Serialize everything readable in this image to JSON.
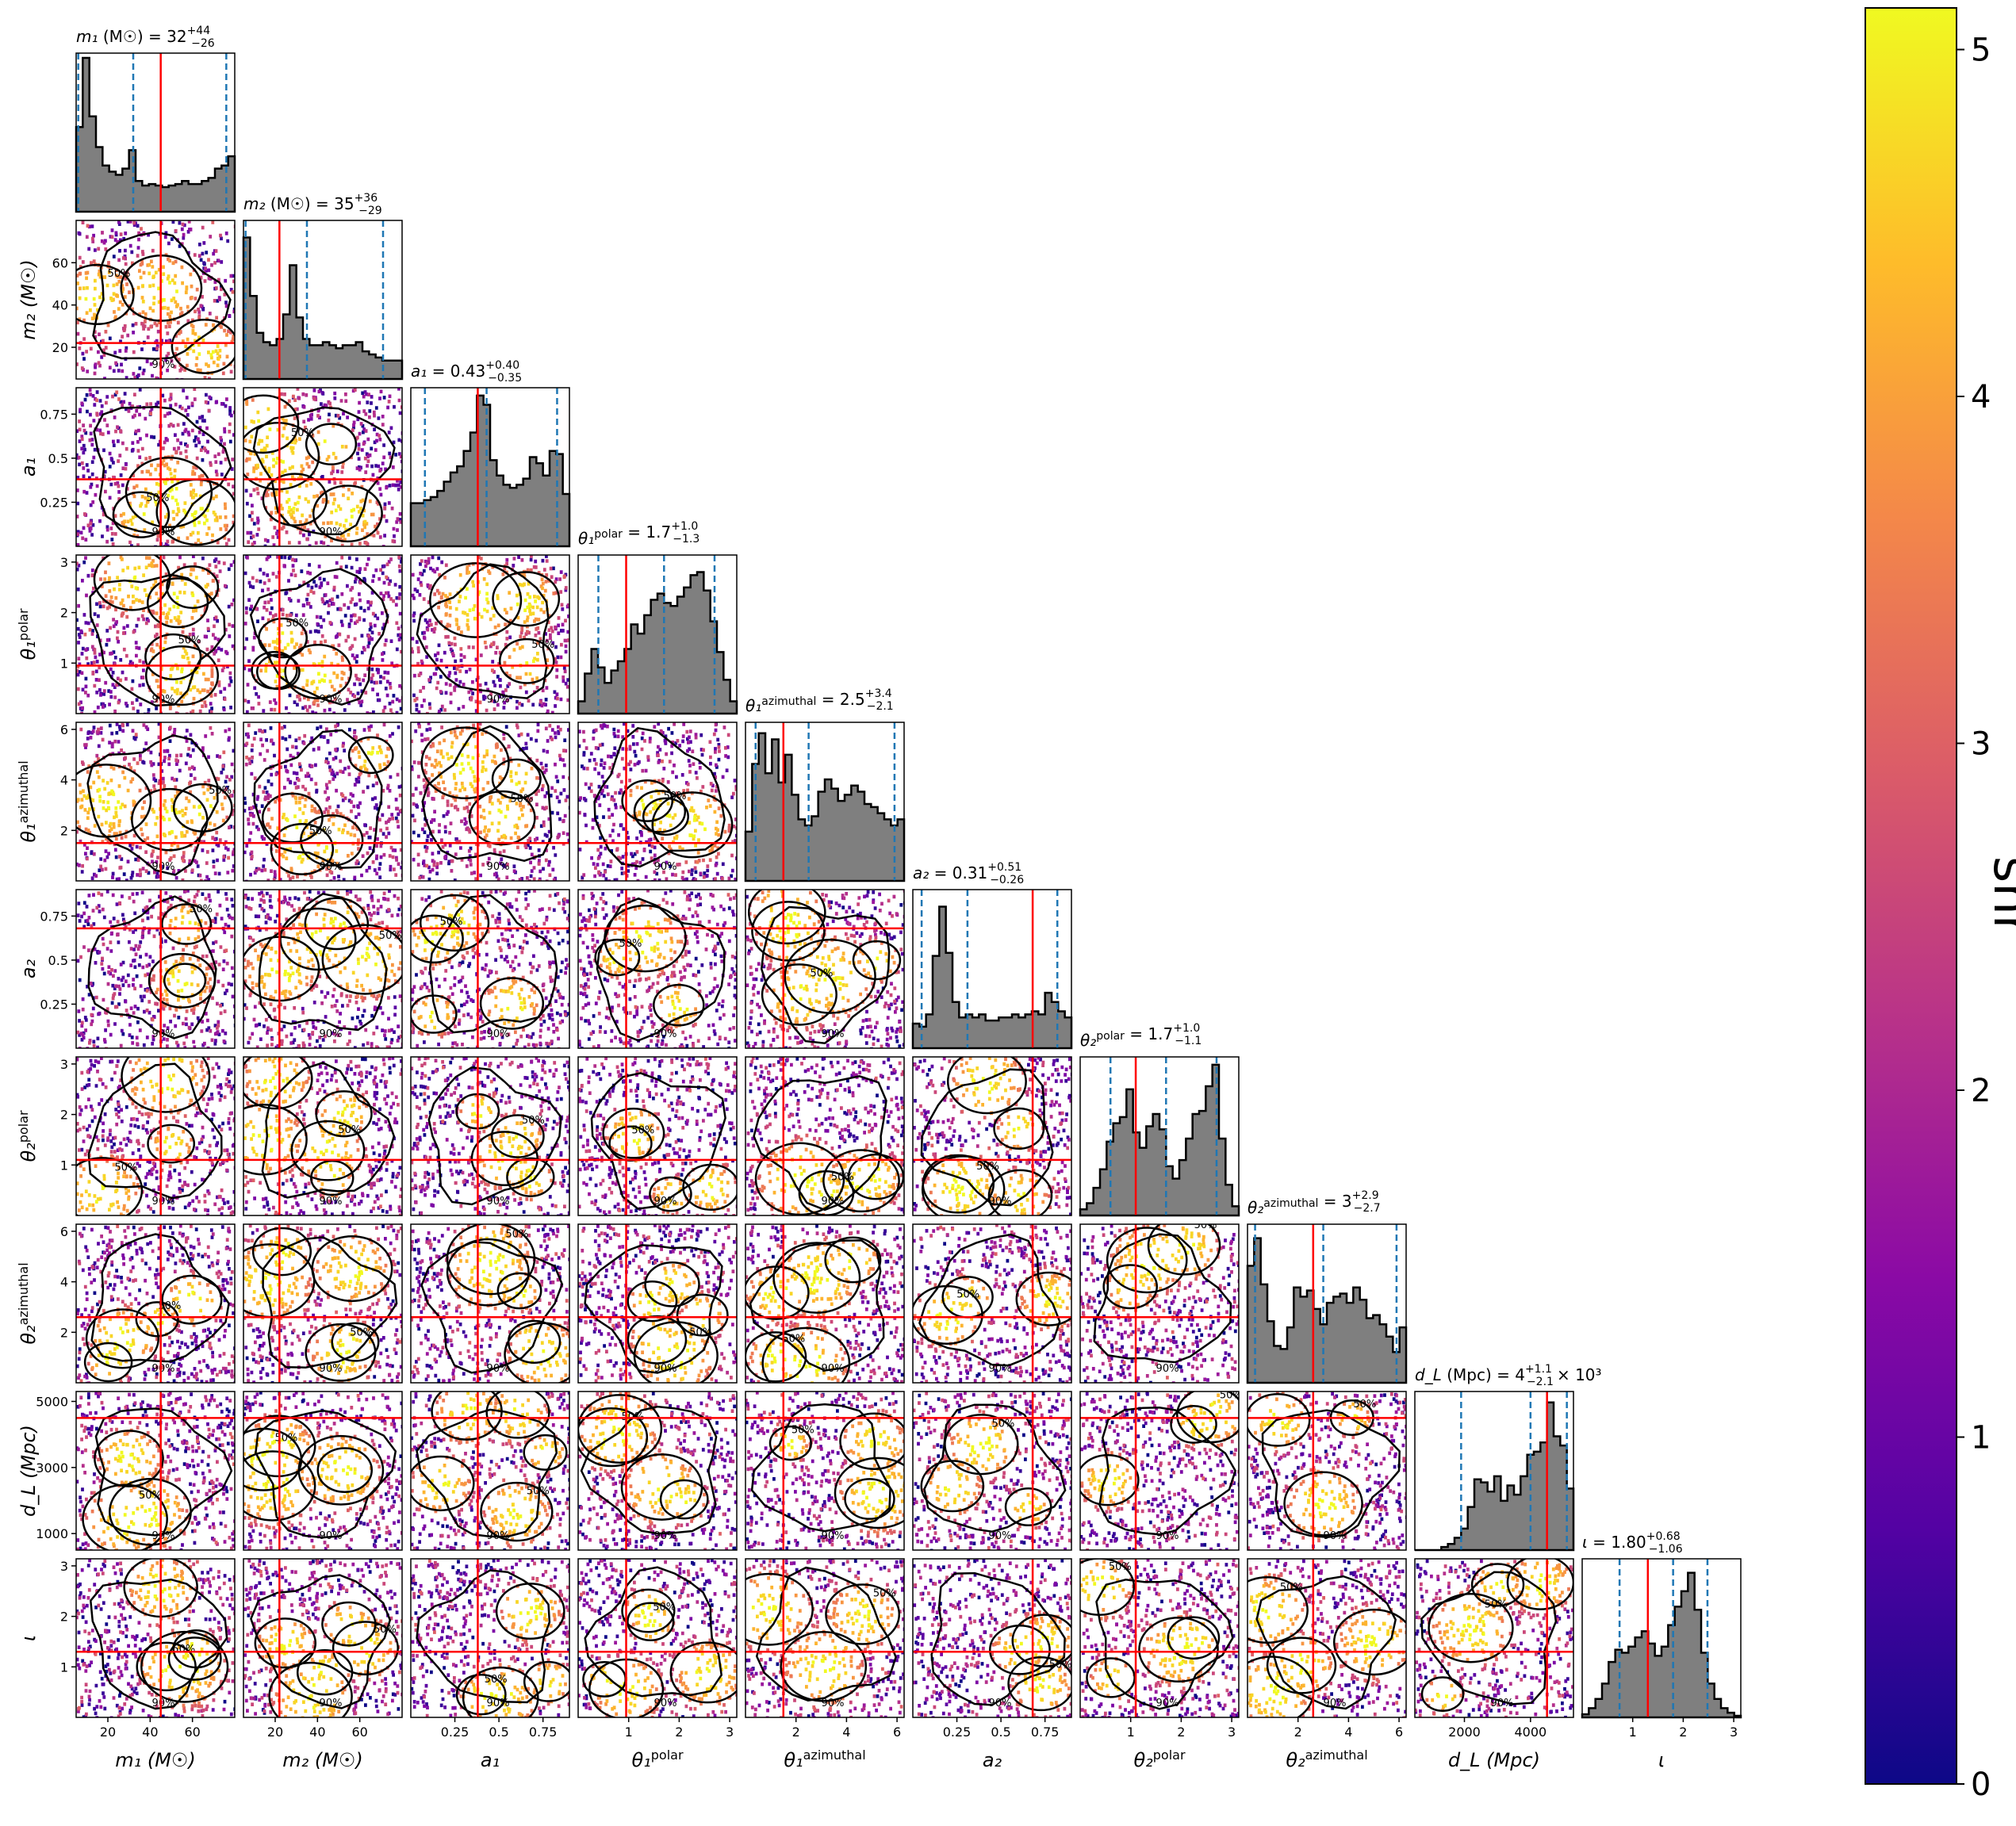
{
  "chart_data": {
    "type": "corner",
    "params": [
      {
        "key": "m1",
        "label": "m₁ (M☉)",
        "range": [
          5,
          80
        ],
        "ticks": [
          20,
          40,
          60
        ],
        "truth": 45,
        "median": 32,
        "lo": 6,
        "hi": 76,
        "title": "m₁ (M☉) = 32",
        "title_sup": "+44",
        "title_sub": "−26"
      },
      {
        "key": "m2",
        "label": "m₂ (M☉)",
        "range": [
          5,
          80
        ],
        "ticks": [
          20,
          40,
          60
        ],
        "truth": 22,
        "median": 35,
        "lo": 6,
        "hi": 71,
        "title": "m₂ (M☉) = 35",
        "title_sup": "+36",
        "title_sub": "−29"
      },
      {
        "key": "a1",
        "label": "a₁",
        "range": [
          0,
          0.9
        ],
        "ticks": [
          0.25,
          0.5,
          0.75
        ],
        "truth": 0.38,
        "median": 0.43,
        "lo": 0.08,
        "hi": 0.83,
        "title": "a₁ = 0.43",
        "title_sup": "+0.40",
        "title_sub": "−0.35"
      },
      {
        "key": "th1p",
        "label": "θ₁",
        "label_sup": "polar",
        "range": [
          0,
          3.14
        ],
        "ticks": [
          1,
          2,
          3
        ],
        "truth": 0.95,
        "median": 1.7,
        "lo": 0.4,
        "hi": 2.7,
        "title": "θ₁ = 1.7",
        "title_top": "polar",
        "title_sup": "+1.0",
        "title_sub": "−1.3"
      },
      {
        "key": "th1a",
        "label": "θ₁",
        "label_sup": "azimuthal",
        "range": [
          0,
          6.28
        ],
        "ticks": [
          2,
          4,
          6
        ],
        "truth": 1.5,
        "median": 2.5,
        "lo": 0.4,
        "hi": 5.9,
        "title": "θ₁ = 2.5",
        "title_top": "azimuthal",
        "title_sup": "+3.4",
        "title_sub": "−2.1"
      },
      {
        "key": "a2",
        "label": "a₂",
        "range": [
          0,
          0.9
        ],
        "ticks": [
          0.25,
          0.5,
          0.75
        ],
        "truth": 0.68,
        "median": 0.31,
        "lo": 0.05,
        "hi": 0.82,
        "title": "a₂ = 0.31",
        "title_sup": "+0.51",
        "title_sub": "−0.26"
      },
      {
        "key": "th2p",
        "label": "θ₂",
        "label_sup": "polar",
        "range": [
          0,
          3.14
        ],
        "ticks": [
          1,
          2,
          3
        ],
        "truth": 1.1,
        "median": 1.7,
        "lo": 0.6,
        "hi": 2.7,
        "title": "θ₂ = 1.7",
        "title_top": "polar",
        "title_sup": "+1.0",
        "title_sub": "−1.1"
      },
      {
        "key": "th2a",
        "label": "θ₂",
        "label_sup": "azimuthal",
        "range": [
          0,
          6.28
        ],
        "ticks": [
          2,
          4,
          6
        ],
        "truth": 2.6,
        "median": 3,
        "lo": 0.3,
        "hi": 5.9,
        "title": "θ₂ = 3",
        "title_top": "azimuthal",
        "title_sup": "+2.9",
        "title_sub": "−2.7"
      },
      {
        "key": "dL",
        "label": "d_L (Mpc)",
        "range": [
          500,
          5300
        ],
        "ticks": [
          1000,
          3000,
          5000
        ],
        "xticks": [
          2000,
          4000
        ],
        "truth": 4500,
        "median": 4000,
        "lo": 1900,
        "hi": 5100,
        "title": "d_L (Mpc) = 4",
        "title_sup": "+1.1",
        "title_sub": "−2.1",
        "title_suffix": "× 10³"
      },
      {
        "key": "iota",
        "label": "ι",
        "range": [
          0,
          3.14
        ],
        "ticks": [
          1,
          2,
          3
        ],
        "truth": 1.3,
        "median": 1.8,
        "lo": 0.74,
        "hi": 2.48,
        "title": "ι = 1.80",
        "title_sup": "+0.68",
        "title_sub": "−1.06"
      }
    ],
    "histograms": [
      [
        0.55,
        1.0,
        0.62,
        0.42,
        0.3,
        0.26,
        0.24,
        0.28,
        0.4,
        0.2,
        0.17,
        0.18,
        0.17,
        0.16,
        0.17,
        0.18,
        0.2,
        0.18,
        0.18,
        0.2,
        0.22,
        0.28,
        0.3,
        0.36
      ],
      [
        0.92,
        0.54,
        0.3,
        0.24,
        0.22,
        0.26,
        0.42,
        0.74,
        0.4,
        0.26,
        0.22,
        0.22,
        0.24,
        0.22,
        0.2,
        0.22,
        0.22,
        0.24,
        0.18,
        0.16,
        0.14,
        0.12,
        0.12,
        0.12
      ],
      [
        0.28,
        0.28,
        0.3,
        0.32,
        0.36,
        0.42,
        0.48,
        0.52,
        0.62,
        0.74,
        0.98,
        0.92,
        0.56,
        0.46,
        0.4,
        0.38,
        0.4,
        0.44,
        0.58,
        0.54,
        0.46,
        0.62,
        0.6,
        0.34
      ],
      [
        0.08,
        0.26,
        0.42,
        0.3,
        0.2,
        0.28,
        0.34,
        0.42,
        0.58,
        0.52,
        0.64,
        0.74,
        0.78,
        0.72,
        0.7,
        0.76,
        0.82,
        0.9,
        0.92,
        0.8,
        0.6,
        0.4,
        0.22,
        0.08
      ],
      [
        0.32,
        0.76,
        0.96,
        0.7,
        0.92,
        0.64,
        0.82,
        0.56,
        0.4,
        0.36,
        0.42,
        0.58,
        0.66,
        0.6,
        0.52,
        0.56,
        0.62,
        0.58,
        0.5,
        0.48,
        0.44,
        0.4,
        0.36,
        0.4
      ],
      [
        0.16,
        0.14,
        0.22,
        0.6,
        0.92,
        0.62,
        0.3,
        0.2,
        0.22,
        0.2,
        0.22,
        0.18,
        0.18,
        0.2,
        0.2,
        0.22,
        0.2,
        0.22,
        0.24,
        0.22,
        0.36,
        0.3,
        0.24,
        0.2
      ],
      [
        0.04,
        0.08,
        0.18,
        0.3,
        0.48,
        0.6,
        0.64,
        0.82,
        0.54,
        0.44,
        0.58,
        0.66,
        0.56,
        0.32,
        0.24,
        0.36,
        0.5,
        0.66,
        0.68,
        0.84,
        0.98,
        0.5,
        0.2,
        0.06
      ],
      [
        0.76,
        0.94,
        0.64,
        0.4,
        0.24,
        0.22,
        0.36,
        0.62,
        0.56,
        0.6,
        0.48,
        0.38,
        0.52,
        0.56,
        0.58,
        0.52,
        0.62,
        0.54,
        0.42,
        0.44,
        0.38,
        0.3,
        0.2,
        0.36
      ],
      [
        0.0,
        0.0,
        0.0,
        0.0,
        0.02,
        0.04,
        0.08,
        0.14,
        0.28,
        0.46,
        0.44,
        0.38,
        0.48,
        0.32,
        0.42,
        0.36,
        0.48,
        0.62,
        0.64,
        0.7,
        0.96,
        0.74,
        0.68,
        0.4
      ],
      [
        0.02,
        0.06,
        0.12,
        0.22,
        0.36,
        0.44,
        0.42,
        0.46,
        0.52,
        0.56,
        0.48,
        0.4,
        0.46,
        0.6,
        0.72,
        0.82,
        0.94,
        0.7,
        0.42,
        0.22,
        0.12,
        0.06,
        0.03,
        0.01
      ]
    ],
    "colorbar": {
      "label": "snr",
      "range": [
        0,
        5.12
      ],
      "ticks": [
        "0",
        "1",
        "2",
        "3",
        "4",
        "5"
      ],
      "colormap": "plasma",
      "stops": [
        "#0d0887",
        "#5302a3",
        "#8b0aa5",
        "#b83289",
        "#db5c68",
        "#f48849",
        "#febc2a",
        "#f0f921"
      ]
    },
    "contour_levels": [
      "50%",
      "90%"
    ],
    "colors": {
      "truth": "#ff0000",
      "quantile": "#1f77b4",
      "hist_fill": "#7f7f7f",
      "contour": "#000000"
    }
  }
}
